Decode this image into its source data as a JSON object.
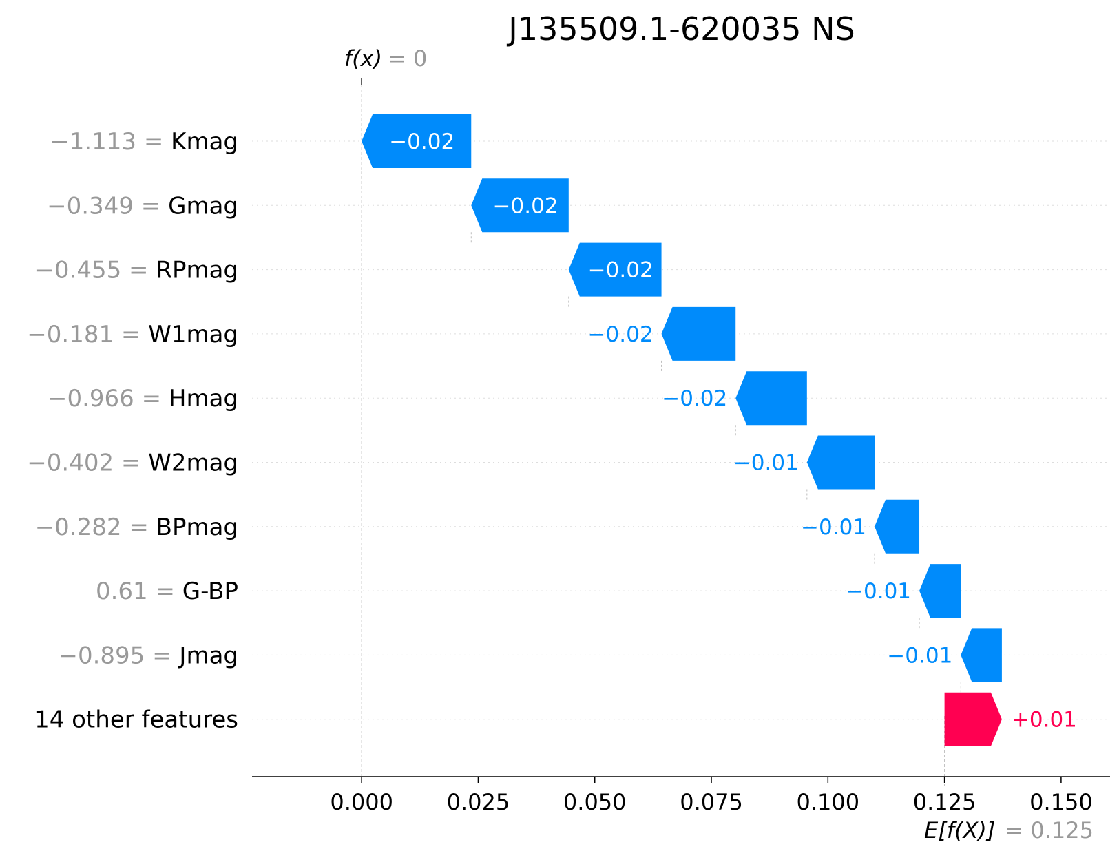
{
  "chart_data": {
    "type": "waterfall",
    "title": "J135509.1-620035 NS",
    "output": {
      "label": "f(x)",
      "value_text": "= 0",
      "value": 0
    },
    "base": {
      "label": "E[f(X)]",
      "value_text": "= 0.125",
      "value": 0.125
    },
    "xlim": [
      -0.0235,
      0.1605
    ],
    "x_ticks": [
      0.0,
      0.025,
      0.05,
      0.075,
      0.1,
      0.125,
      0.15
    ],
    "x_tick_labels": [
      "0.000",
      "0.025",
      "0.050",
      "0.075",
      "0.100",
      "0.125",
      "0.150"
    ],
    "features": [
      {
        "value": "−1.113",
        "name": "Kmag",
        "start": 0.0235,
        "end": 0.0,
        "label": "−0.02"
      },
      {
        "value": "−0.349",
        "name": "Gmag",
        "start": 0.0444,
        "end": 0.0235,
        "label": "−0.02"
      },
      {
        "value": "−0.455",
        "name": "RPmag",
        "start": 0.0643,
        "end": 0.0444,
        "label": "−0.02"
      },
      {
        "value": "−0.181",
        "name": "W1mag",
        "start": 0.0802,
        "end": 0.0643,
        "label": "−0.02"
      },
      {
        "value": "−0.966",
        "name": "Hmag",
        "start": 0.0955,
        "end": 0.0802,
        "label": "−0.02"
      },
      {
        "value": "−0.402",
        "name": "W2mag",
        "start": 0.11,
        "end": 0.0955,
        "label": "−0.01"
      },
      {
        "value": "−0.282",
        "name": "BPmag",
        "start": 0.1196,
        "end": 0.11,
        "label": "−0.01"
      },
      {
        "value": "0.61",
        "name": "G-BP",
        "start": 0.1285,
        "end": 0.1196,
        "label": "−0.01"
      },
      {
        "value": "−0.895",
        "name": "Jmag",
        "start": 0.1373,
        "end": 0.1285,
        "label": "−0.01"
      },
      {
        "value": "",
        "name": "14 other features",
        "start": 0.125,
        "end": 0.1373,
        "label": "+0.01"
      }
    ],
    "colors": {
      "negative": "#008bfb",
      "positive": "#ff0051",
      "value_text": "#999999"
    }
  }
}
